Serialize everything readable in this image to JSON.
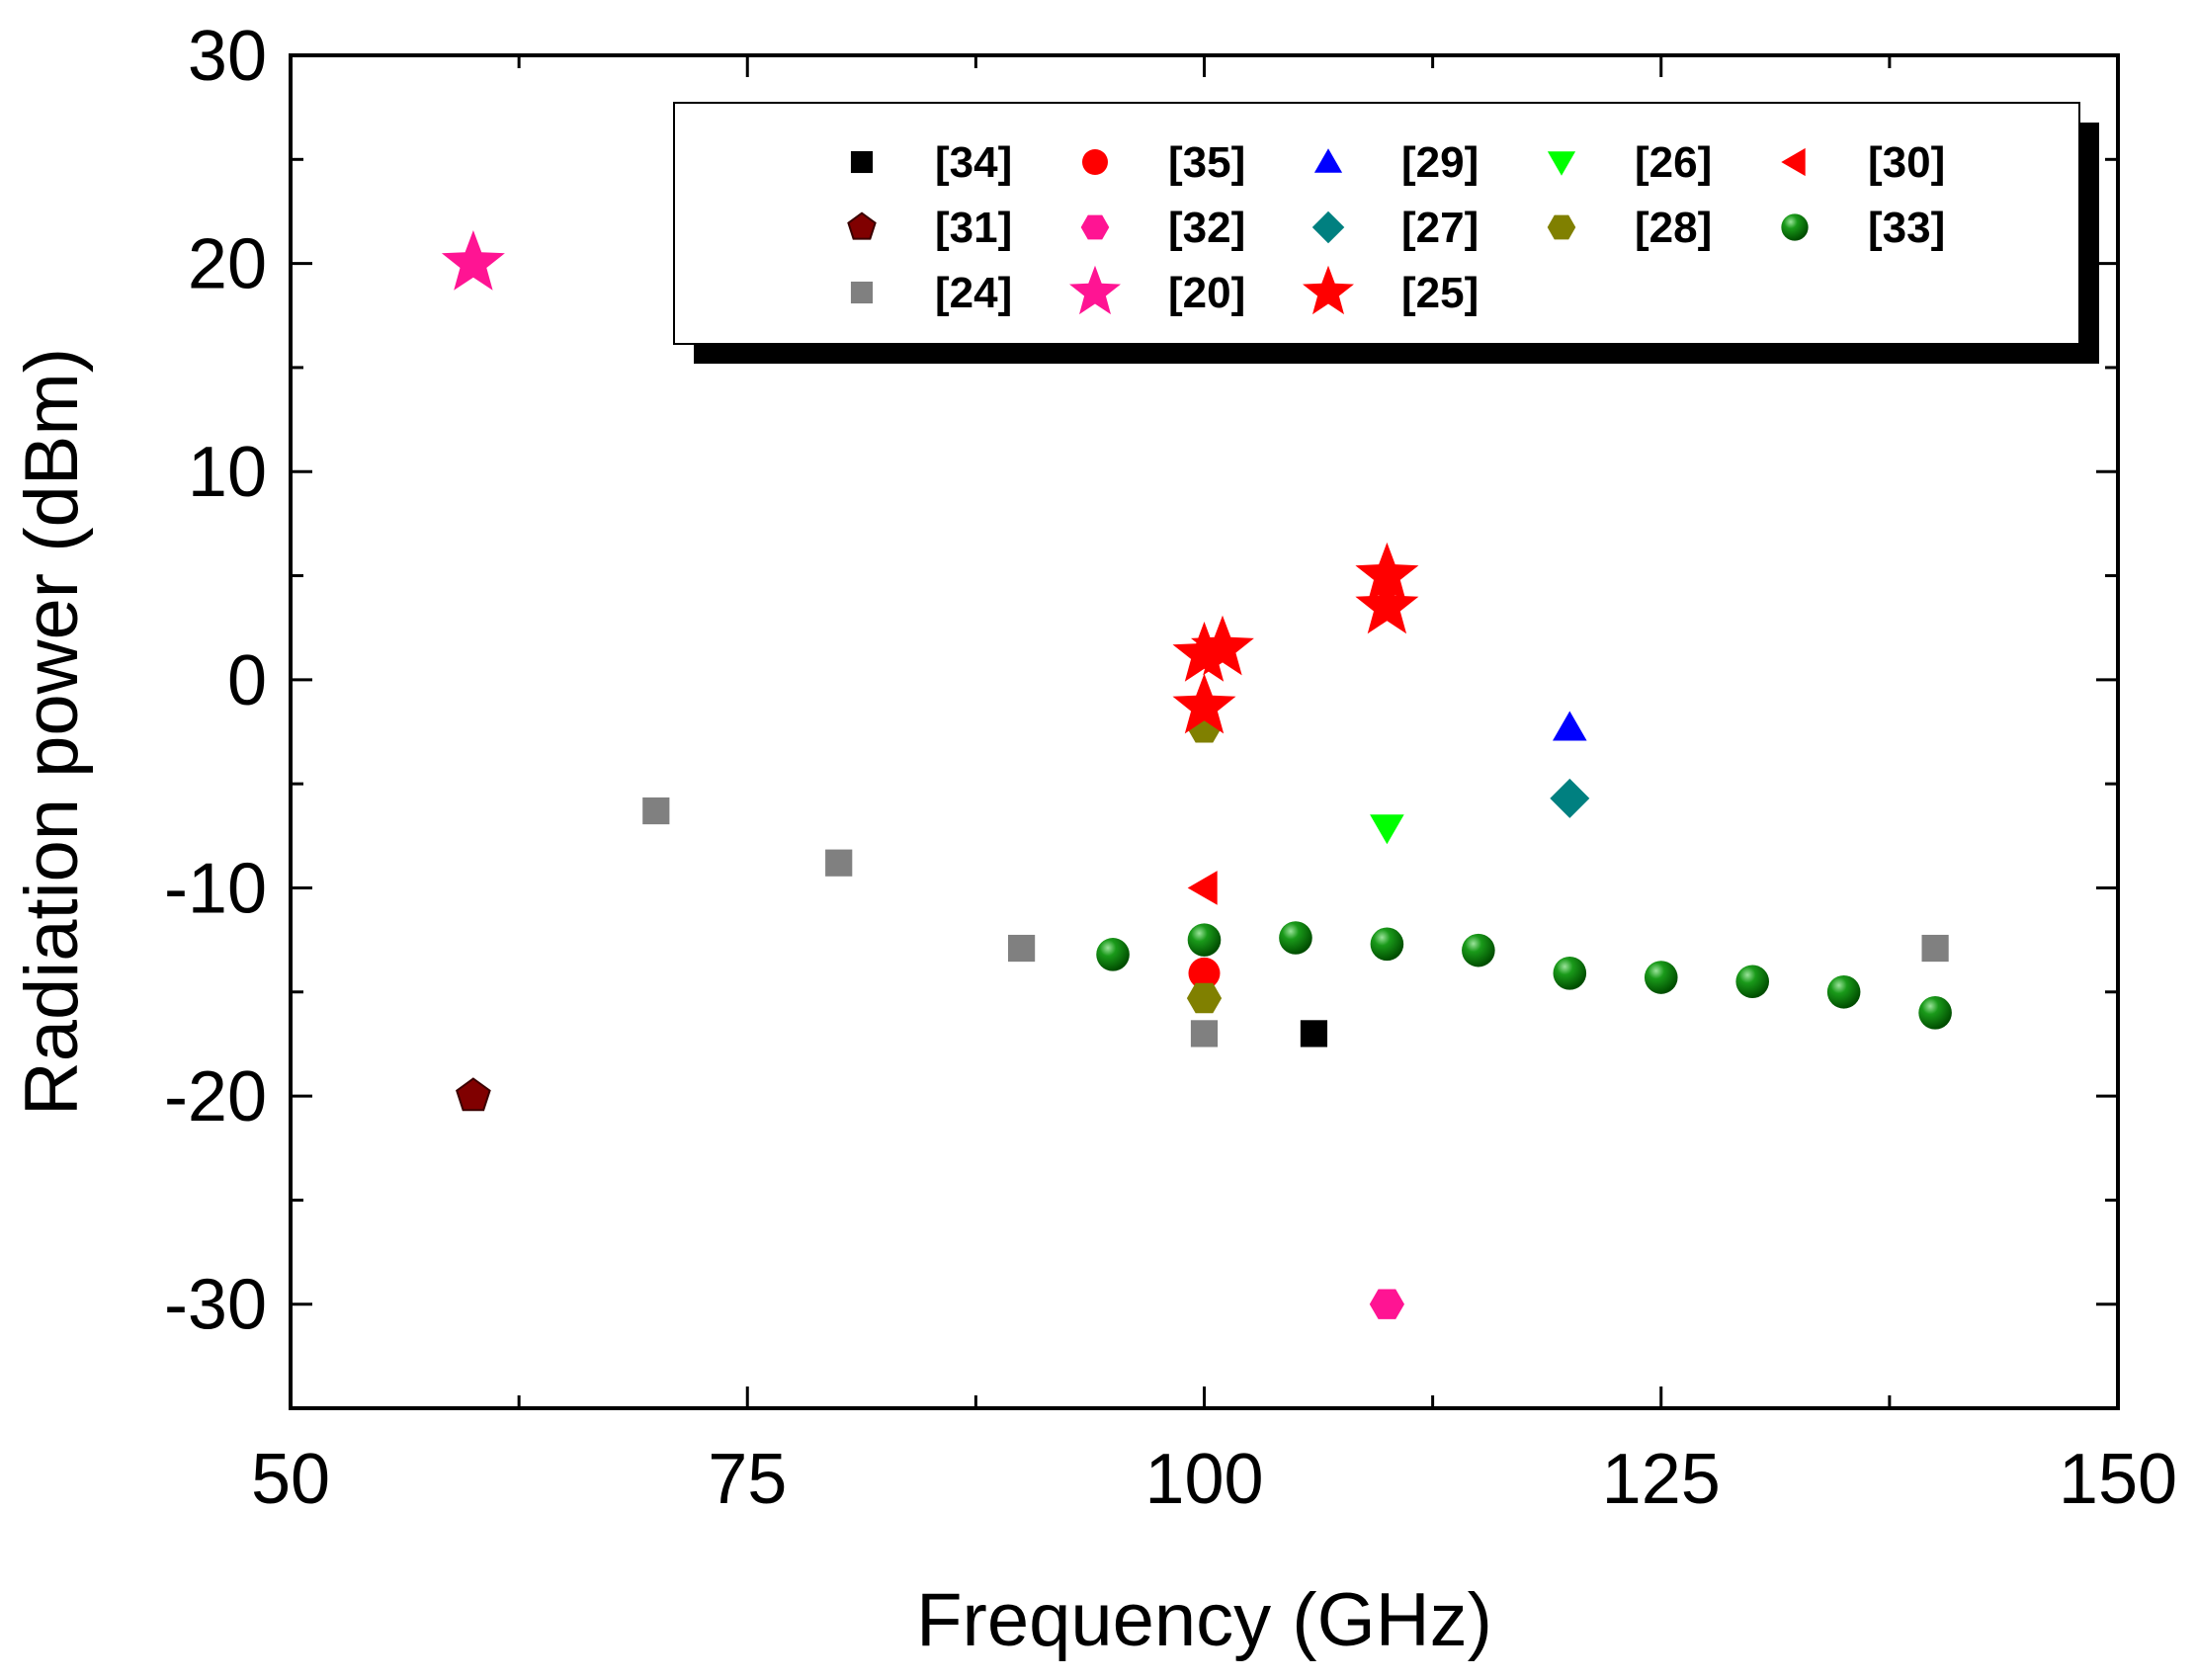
{
  "chart_data": {
    "type": "scatter",
    "title": "",
    "xlabel": "Frequency (GHz)",
    "ylabel": "Radiation power (dBm)",
    "xlim": [
      50,
      150
    ],
    "ylim": [
      -35,
      30
    ],
    "xticks": [
      50,
      75,
      100,
      125,
      150
    ],
    "yticks": [
      -30,
      -20,
      -10,
      0,
      10,
      20,
      30
    ],
    "grid": false,
    "legend_position": "top-right",
    "series": [
      {
        "name": "[34]",
        "marker": "square",
        "color": "#000000",
        "points": [
          [
            106,
            -17
          ]
        ]
      },
      {
        "name": "[35]",
        "marker": "circle",
        "color": "#ff0000",
        "points": [
          [
            100,
            -14.1
          ]
        ]
      },
      {
        "name": "[29]",
        "marker": "triangle-up",
        "color": "#0000ff",
        "points": [
          [
            120,
            -2.3
          ]
        ]
      },
      {
        "name": "[26]",
        "marker": "triangle-down",
        "color": "#00ff00",
        "points": [
          [
            110,
            -7.1
          ]
        ]
      },
      {
        "name": "[30]",
        "marker": "triangle-left",
        "color": "#ff0000",
        "points": [
          [
            100,
            -10
          ]
        ]
      },
      {
        "name": "[31]",
        "marker": "pentagon",
        "color": "#800000",
        "points": [
          [
            60,
            -20
          ]
        ]
      },
      {
        "name": "[32]",
        "marker": "hexagon",
        "color": "#ff1493",
        "points": [
          [
            110,
            -30
          ]
        ]
      },
      {
        "name": "[27]",
        "marker": "diamond",
        "color": "#008080",
        "points": [
          [
            120,
            -5.7
          ]
        ]
      },
      {
        "name": "[28]",
        "marker": "hexagon",
        "color": "#808000",
        "points": [
          [
            100,
            -2.3
          ],
          [
            100,
            -15.3
          ]
        ]
      },
      {
        "name": "[33]",
        "marker": "sphere",
        "color": "#008000",
        "points": [
          [
            95,
            -13.2
          ],
          [
            100,
            -12.5
          ],
          [
            105,
            -12.4
          ],
          [
            110,
            -12.7
          ],
          [
            115,
            -13
          ],
          [
            120,
            -14.1
          ],
          [
            125,
            -14.3
          ],
          [
            130,
            -14.5
          ],
          [
            135,
            -15
          ],
          [
            140,
            -16
          ]
        ]
      },
      {
        "name": "[24]",
        "marker": "square",
        "color": "#808080",
        "points": [
          [
            70,
            -6.3
          ],
          [
            80,
            -8.8
          ],
          [
            90,
            -12.9
          ],
          [
            100,
            -17
          ],
          [
            140,
            -12.9
          ]
        ]
      },
      {
        "name": "[20]",
        "marker": "star",
        "color": "#ff1493",
        "points": [
          [
            60,
            20
          ]
        ]
      },
      {
        "name": "[25]",
        "marker": "star",
        "color": "#ff0000",
        "points": [
          [
            100,
            -1.3
          ],
          [
            100,
            1.2
          ],
          [
            101,
            1.5
          ],
          [
            110,
            5
          ],
          [
            110,
            3.5
          ]
        ]
      }
    ]
  }
}
